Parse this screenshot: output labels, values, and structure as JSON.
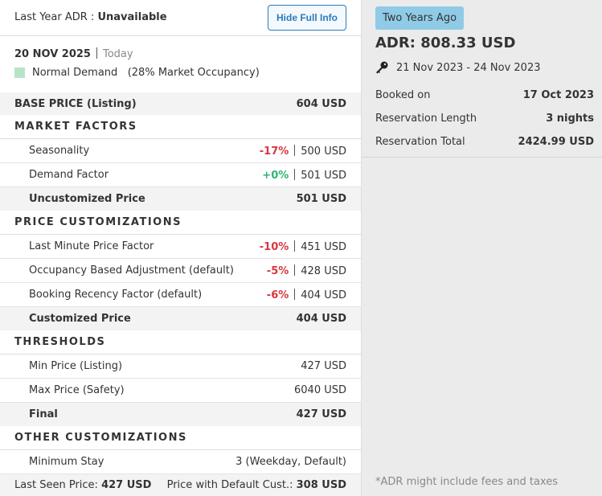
{
  "header": {
    "label": "Last Year ADR :",
    "value": "Unavailable",
    "button": "Hide Full Info"
  },
  "date": {
    "day": "20 NOV 2025",
    "relative": "Today"
  },
  "demand": {
    "label": "Normal Demand",
    "occupancy": "(28% Market Occupancy)",
    "color": "#b7e4c7"
  },
  "base_price": {
    "label": "BASE PRICE (Listing)",
    "value": "604 USD"
  },
  "sections": [
    {
      "title": "MARKET FACTORS",
      "rows": [
        {
          "label": "Seasonality",
          "change": "-17%",
          "change_color": "#d9363e",
          "value": "500 USD"
        },
        {
          "label": "Demand Factor",
          "change": "+0%",
          "change_color": "#2bb673",
          "value": "501 USD"
        }
      ],
      "total": {
        "label": "Uncustomized Price",
        "value": "501 USD"
      }
    },
    {
      "title": "PRICE CUSTOMIZATIONS",
      "rows": [
        {
          "label": "Last Minute Price Factor",
          "change": "-10%",
          "change_color": "#d9363e",
          "value": "451 USD"
        },
        {
          "label": "Occupancy Based Adjustment (default)",
          "change": "-5%",
          "change_color": "#d9363e",
          "value": "428 USD"
        },
        {
          "label": "Booking Recency Factor (default)",
          "change": "-6%",
          "change_color": "#d9363e",
          "value": "404 USD"
        }
      ],
      "total": {
        "label": "Customized Price",
        "value": "404 USD"
      }
    },
    {
      "title": "THRESHOLDS",
      "rows": [
        {
          "label": "Min Price (Listing)",
          "value": "427 USD"
        },
        {
          "label": "Max Price (Safety)",
          "value": "6040 USD"
        }
      ],
      "total": {
        "label": "Final",
        "value": "427 USD"
      }
    },
    {
      "title": "OTHER CUSTOMIZATIONS",
      "rows": [
        {
          "label": "Minimum Stay",
          "value": "3 (Weekday, Default)"
        }
      ]
    }
  ],
  "footer": {
    "last_seen_label": "Last Seen Price:",
    "last_seen_value": "427 USD",
    "default_label": "Price with Default Cust.:",
    "default_value": "308 USD"
  },
  "comparison": {
    "badge": "Two Years Ago",
    "adr": "ADR: 808.33 USD",
    "dates": "21 Nov 2023 - 24 Nov 2023",
    "rows": [
      {
        "label": "Booked on",
        "value": "17 Oct 2023"
      },
      {
        "label": "Reservation Length",
        "value": "3 nights"
      },
      {
        "label": "Reservation Total",
        "value": "2424.99 USD"
      }
    ],
    "note": "*ADR might include fees and taxes"
  }
}
